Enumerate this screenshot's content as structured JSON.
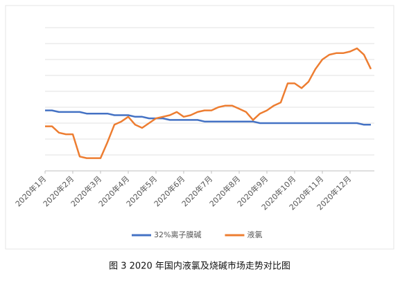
{
  "chart_data": {
    "type": "line",
    "caption": "图 3 2020 年国内液氯及烧碱市场走势对比图",
    "categories": [
      "2020年1月",
      null,
      null,
      null,
      "2020年2月",
      null,
      null,
      null,
      "2020年3月",
      null,
      null,
      null,
      "2020年4月",
      null,
      null,
      null,
      "2020年5月",
      null,
      null,
      null,
      "2020年6月",
      null,
      null,
      null,
      "2020年7月",
      null,
      null,
      null,
      "2020年8月",
      null,
      null,
      null,
      "2020年9月",
      null,
      null,
      null,
      "2020年10月",
      null,
      null,
      null,
      "2020年11月",
      null,
      null,
      null,
      "2020年12月",
      null,
      null,
      null
    ],
    "series": [
      {
        "name": "32%离子膜碱",
        "color": "#4472c4",
        "values": [
          3.8,
          3.8,
          3.7,
          3.7,
          3.7,
          3.7,
          3.6,
          3.6,
          3.6,
          3.6,
          3.5,
          3.5,
          3.5,
          3.4,
          3.4,
          3.3,
          3.3,
          3.3,
          3.2,
          3.2,
          3.2,
          3.2,
          3.2,
          3.1,
          3.1,
          3.1,
          3.1,
          3.1,
          3.1,
          3.1,
          3.1,
          3.0,
          3.0,
          3.0,
          3.0,
          3.0,
          3.0,
          3.0,
          3.0,
          3.0,
          3.0,
          3.0,
          3.0,
          3.0,
          3.0,
          3.0,
          2.9,
          2.9
        ]
      },
      {
        "name": "液氯",
        "color": "#ed7d31",
        "values": [
          2.8,
          2.8,
          2.4,
          2.3,
          2.3,
          0.9,
          0.8,
          0.8,
          0.8,
          1.8,
          2.9,
          3.1,
          3.4,
          2.9,
          2.7,
          3.0,
          3.3,
          3.4,
          3.5,
          3.7,
          3.4,
          3.5,
          3.7,
          3.8,
          3.8,
          4.0,
          4.1,
          4.1,
          3.9,
          3.7,
          3.2,
          3.6,
          3.8,
          4.1,
          4.3,
          5.5,
          5.5,
          5.2,
          5.6,
          6.4,
          7.0,
          7.3,
          7.4,
          7.4,
          7.5,
          7.7,
          7.3,
          6.4
        ]
      }
    ],
    "ylim": [
      0,
      9
    ],
    "yticks": [
      0,
      1,
      2,
      3,
      4,
      5,
      6,
      7,
      8,
      9
    ],
    "grid": true,
    "ytick_labels": false,
    "legend": "bottom"
  }
}
